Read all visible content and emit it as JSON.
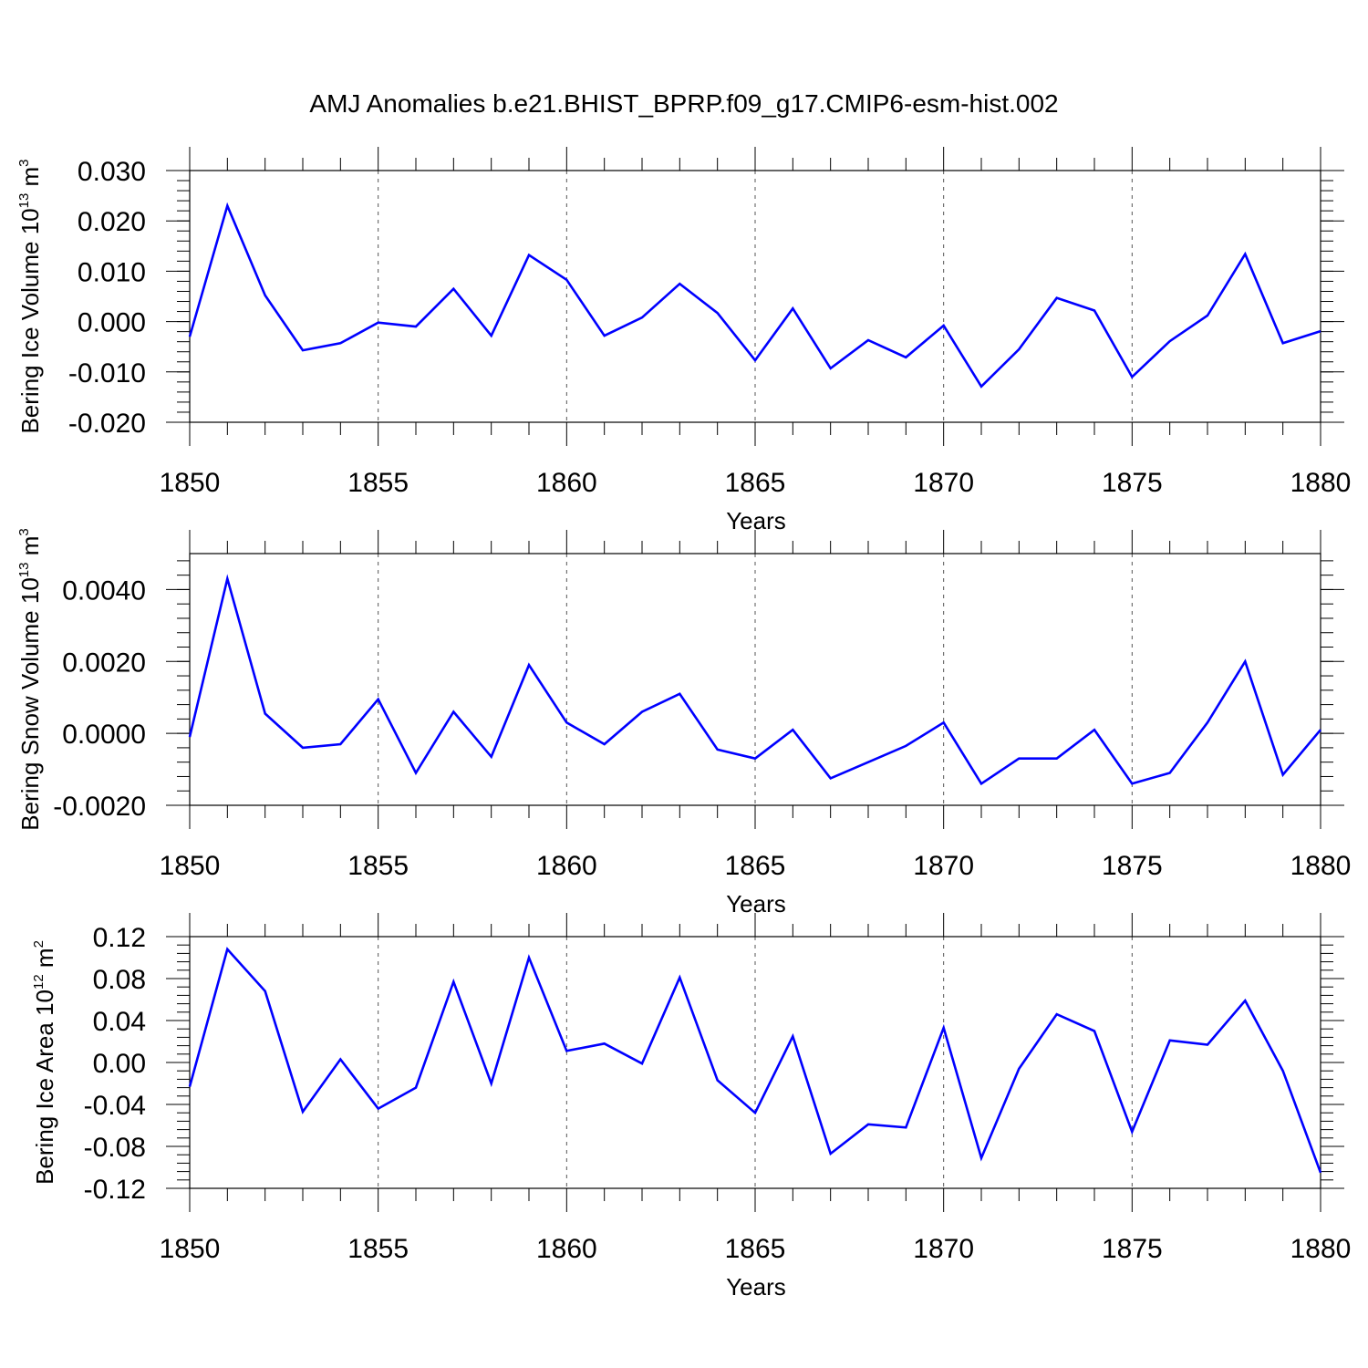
{
  "chart_data": {
    "title": "AMJ Anomalies b.e21.BHIST_BPRP.f09_g17.CMIP6-esm-hist.002",
    "panels": [
      {
        "type": "line",
        "xlabel": "Years",
        "ylabel": {
          "prefix": "Bering Ice Volume 10",
          "exp": "13",
          "unit": " m",
          "unit_exp": "3"
        },
        "xlim": [
          1850,
          1880
        ],
        "ylim": [
          -0.02,
          0.03
        ],
        "yticks": [
          -0.02,
          -0.01,
          0.0,
          0.01,
          0.02,
          0.03
        ],
        "ytick_labels": [
          "-0.020",
          "-0.010",
          "0.000",
          "0.010",
          "0.020",
          "0.030"
        ],
        "x": [
          1850,
          1851,
          1852,
          1853,
          1854,
          1855,
          1856,
          1857,
          1858,
          1859,
          1860,
          1861,
          1862,
          1863,
          1864,
          1865,
          1866,
          1867,
          1868,
          1869,
          1870,
          1871,
          1872,
          1873,
          1874,
          1875,
          1876,
          1877,
          1878,
          1879,
          1880
        ],
        "values": [
          -0.003,
          0.023,
          0.0052,
          -0.0057,
          -0.0043,
          -0.0002,
          -0.001,
          0.0065,
          -0.0028,
          0.0132,
          0.0083,
          -0.0028,
          0.0008,
          0.0075,
          0.0017,
          -0.0077,
          0.0026,
          -0.0093,
          -0.0037,
          -0.0071,
          -0.0008,
          -0.0129,
          -0.0055,
          0.0047,
          0.0022,
          -0.011,
          -0.0039,
          0.0012,
          0.0134,
          -0.0043,
          -0.0019
        ]
      },
      {
        "type": "line",
        "xlabel": "Years",
        "ylabel": {
          "prefix": "Bering Snow Volume 10",
          "exp": "13",
          "unit": " m",
          "unit_exp": "3"
        },
        "xlim": [
          1850,
          1880
        ],
        "ylim": [
          -0.002,
          0.005
        ],
        "yticks": [
          -0.002,
          0.0,
          0.002,
          0.004
        ],
        "ytick_labels": [
          "-0.0020",
          "0.0000",
          "0.0020",
          "0.0040"
        ],
        "x": [
          1850,
          1851,
          1852,
          1853,
          1854,
          1855,
          1856,
          1857,
          1858,
          1859,
          1860,
          1861,
          1862,
          1863,
          1864,
          1865,
          1866,
          1867,
          1868,
          1869,
          1870,
          1871,
          1872,
          1873,
          1874,
          1875,
          1876,
          1877,
          1878,
          1879,
          1880
        ],
        "values": [
          -0.0001,
          0.0043,
          0.00055,
          -0.0004,
          -0.0003,
          0.00095,
          -0.0011,
          0.0006,
          -0.00065,
          0.0019,
          0.0003,
          -0.0003,
          0.0006,
          0.0011,
          -0.00045,
          -0.0007,
          0.0001,
          -0.00125,
          -0.0008,
          -0.00035,
          0.0003,
          -0.0014,
          -0.0007,
          -0.0007,
          0.0001,
          -0.0014,
          -0.0011,
          0.0003,
          0.002,
          -0.00115,
          0.0001
        ]
      },
      {
        "type": "line",
        "xlabel": "Years",
        "ylabel": {
          "prefix": "Bering Ice Area 10",
          "exp": "12",
          "unit": " m",
          "unit_exp": "2"
        },
        "xlim": [
          1850,
          1880
        ],
        "ylim": [
          -0.12,
          0.12
        ],
        "yticks": [
          -0.12,
          -0.08,
          -0.04,
          0.0,
          0.04,
          0.08,
          0.12
        ],
        "ytick_labels": [
          "-0.12",
          "-0.08",
          "-0.04",
          "0.00",
          "0.04",
          "0.08",
          "0.12"
        ],
        "x": [
          1850,
          1851,
          1852,
          1853,
          1854,
          1855,
          1856,
          1857,
          1858,
          1859,
          1860,
          1861,
          1862,
          1863,
          1864,
          1865,
          1866,
          1867,
          1868,
          1869,
          1870,
          1871,
          1872,
          1873,
          1874,
          1875,
          1876,
          1877,
          1878,
          1879,
          1880
        ],
        "values": [
          -0.023,
          0.108,
          0.068,
          -0.047,
          0.003,
          -0.044,
          -0.024,
          0.077,
          -0.02,
          0.1,
          0.011,
          0.018,
          -0.001,
          0.081,
          -0.017,
          -0.048,
          0.025,
          -0.087,
          -0.059,
          -0.062,
          0.033,
          -0.091,
          -0.006,
          0.046,
          0.03,
          -0.066,
          0.021,
          0.017,
          0.059,
          -0.008,
          -0.105
        ]
      }
    ],
    "xticks": [
      1850,
      1855,
      1860,
      1865,
      1870,
      1875,
      1880
    ],
    "xtick_labels": [
      "1850",
      "1855",
      "1860",
      "1865",
      "1870",
      "1875",
      "1880"
    ]
  }
}
